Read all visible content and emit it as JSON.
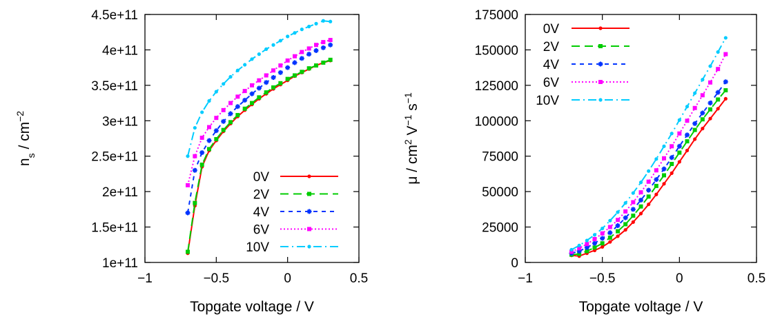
{
  "chart_data": [
    {
      "type": "line",
      "xlabel": "Topgate voltage / V",
      "ylabel": "n_s / cm^-2",
      "ylabel_base": "n",
      "ylabel_sub": "s",
      "ylabel_mid": " / cm",
      "ylabel_sup": "−2",
      "xlim": [
        -1,
        0.5
      ],
      "ylim": [
        100000000000.0,
        450000000000.0
      ],
      "grid": false,
      "legend_position": "bottom-right",
      "x_ticks": [
        -1,
        -0.5,
        0,
        0.5
      ],
      "x_tick_labels": [
        "−1",
        "−0.5",
        "0",
        "0.5"
      ],
      "y_ticks": [
        100000000000.0,
        150000000000.0,
        200000000000.0,
        250000000000.0,
        300000000000.0,
        350000000000.0,
        400000000000.0,
        450000000000.0
      ],
      "y_tick_labels": [
        "1e+11",
        "1.5e+11",
        "2e+11",
        "2.5e+11",
        "3e+11",
        "3.5e+11",
        "4e+11",
        "4.5e+11"
      ],
      "x": [
        -0.7,
        -0.65,
        -0.6,
        -0.55,
        -0.5,
        -0.45,
        -0.4,
        -0.35,
        -0.3,
        -0.25,
        -0.2,
        -0.15,
        -0.1,
        -0.05,
        0,
        0.05,
        0.1,
        0.15,
        0.2,
        0.25,
        0.3
      ],
      "series": [
        {
          "name": "0V",
          "color": "#ff0000",
          "dash": "",
          "marker": "dot",
          "values": [
            113000000000.0,
            180000000000.0,
            235000000000.0,
            258000000000.0,
            272000000000.0,
            285000000000.0,
            296000000000.0,
            306000000000.0,
            315000000000.0,
            323000000000.0,
            331000000000.0,
            338000000000.0,
            345000000000.0,
            351000000000.0,
            357000000000.0,
            363000000000.0,
            368000000000.0,
            373000000000.0,
            378000000000.0,
            382000000000.0,
            385000000000.0
          ]
        },
        {
          "name": "2V",
          "color": "#00cc00",
          "dash": "12,7",
          "marker": "square",
          "values": [
            115000000000.0,
            184000000000.0,
            238000000000.0,
            260000000000.0,
            274000000000.0,
            287000000000.0,
            298000000000.0,
            308000000000.0,
            317000000000.0,
            325000000000.0,
            333000000000.0,
            340000000000.0,
            347000000000.0,
            353000000000.0,
            359000000000.0,
            364000000000.0,
            369000000000.0,
            374000000000.0,
            378000000000.0,
            382000000000.0,
            386000000000.0
          ]
        },
        {
          "name": "4V",
          "color": "#0033ff",
          "dash": "6,6",
          "marker": "star",
          "values": [
            170000000000.0,
            230000000000.0,
            255000000000.0,
            272000000000.0,
            286000000000.0,
            299000000000.0,
            310000000000.0,
            320000000000.0,
            329000000000.0,
            338000000000.0,
            346000000000.0,
            354000000000.0,
            361000000000.0,
            368000000000.0,
            375000000000.0,
            382000000000.0,
            388000000000.0,
            394000000000.0,
            399000000000.0,
            403000000000.0,
            407000000000.0
          ]
        },
        {
          "name": "6V",
          "color": "#ff00ff",
          "dash": "2,3",
          "marker": "square",
          "values": [
            209000000000.0,
            250000000000.0,
            276000000000.0,
            291000000000.0,
            304000000000.0,
            315000000000.0,
            325000000000.0,
            334000000000.0,
            342000000000.0,
            350000000000.0,
            357000000000.0,
            364000000000.0,
            371000000000.0,
            378000000000.0,
            385000000000.0,
            391000000000.0,
            397000000000.0,
            402000000000.0,
            407000000000.0,
            411000000000.0,
            414000000000.0
          ]
        },
        {
          "name": "10V",
          "color": "#00ccff",
          "dash": "12,5,2,5",
          "marker": "dot",
          "values": [
            250000000000.0,
            290000000000.0,
            312000000000.0,
            328000000000.0,
            341000000000.0,
            352000000000.0,
            362000000000.0,
            371000000000.0,
            379000000000.0,
            387000000000.0,
            394000000000.0,
            401000000000.0,
            407000000000.0,
            413000000000.0,
            419000000000.0,
            424000000000.0,
            429000000000.0,
            433000000000.0,
            437000000000.0,
            441000000000.0,
            440000000000.0
          ]
        }
      ]
    },
    {
      "type": "line",
      "xlabel": "Topgate voltage / V",
      "ylabel": "μ / cm^2 V^-1 s^-1",
      "ylabel_parts": [
        {
          "t": "μ / cm",
          "s": ""
        },
        {
          "t": "2",
          "s": "sup"
        },
        {
          "t": " V",
          "s": ""
        },
        {
          "t": "−1",
          "s": "sup"
        },
        {
          "t": " s",
          "s": ""
        },
        {
          "t": "−1",
          "s": "sup"
        }
      ],
      "xlim": [
        -1,
        0.5
      ],
      "ylim": [
        0,
        175000
      ],
      "grid": false,
      "legend_position": "top-left",
      "x_ticks": [
        -1,
        -0.5,
        0,
        0.5
      ],
      "x_tick_labels": [
        "−1",
        "−0.5",
        "0",
        "0.5"
      ],
      "y_ticks": [
        0,
        25000,
        50000,
        75000,
        100000,
        125000,
        150000,
        175000
      ],
      "y_tick_labels": [
        "0",
        "25000",
        "50000",
        "75000",
        "100000",
        "125000",
        "150000",
        "175000"
      ],
      "x": [
        -0.7,
        -0.65,
        -0.6,
        -0.55,
        -0.5,
        -0.45,
        -0.4,
        -0.35,
        -0.3,
        -0.25,
        -0.2,
        -0.15,
        -0.1,
        -0.05,
        0,
        0.05,
        0.1,
        0.15,
        0.2,
        0.25,
        0.3
      ],
      "series": [
        {
          "name": "0V",
          "color": "#ff0000",
          "dash": "",
          "marker": "dot",
          "values": [
            5000,
            4500,
            6500,
            8500,
            11000,
            14500,
            18500,
            23000,
            28500,
            34500,
            41000,
            48000,
            55500,
            63000,
            71000,
            79000,
            87000,
            94500,
            101500,
            108500,
            115500
          ]
        },
        {
          "name": "2V",
          "color": "#00cc00",
          "dash": "12,7",
          "marker": "square",
          "values": [
            5500,
            6000,
            8000,
            10500,
            13500,
            17500,
            22000,
            27000,
            33000,
            39500,
            46500,
            54000,
            61500,
            69500,
            77500,
            85500,
            93500,
            101000,
            108000,
            115000,
            121500
          ]
        },
        {
          "name": "4V",
          "color": "#0033ff",
          "dash": "6,6",
          "marker": "star",
          "values": [
            6500,
            8000,
            10500,
            13500,
            17000,
            21000,
            26000,
            31500,
            37500,
            44000,
            51000,
            58500,
            66000,
            74000,
            82000,
            90000,
            98000,
            105500,
            112500,
            120000,
            127500
          ]
        },
        {
          "name": "6V",
          "color": "#ff00ff",
          "dash": "2,3",
          "marker": "square",
          "values": [
            7500,
            10000,
            13000,
            16500,
            20500,
            25000,
            30000,
            36000,
            42500,
            49500,
            57000,
            65000,
            73500,
            82000,
            91000,
            100000,
            109000,
            118000,
            127000,
            136500,
            147000
          ]
        },
        {
          "name": "10V",
          "color": "#00ccff",
          "dash": "12,5,2,5",
          "marker": "dot",
          "values": [
            9000,
            12000,
            15500,
            19500,
            24000,
            29500,
            35500,
            42000,
            49000,
            56500,
            64500,
            73000,
            82000,
            91000,
            100500,
            110000,
            119500,
            129000,
            138500,
            148500,
            158500
          ]
        }
      ]
    }
  ]
}
